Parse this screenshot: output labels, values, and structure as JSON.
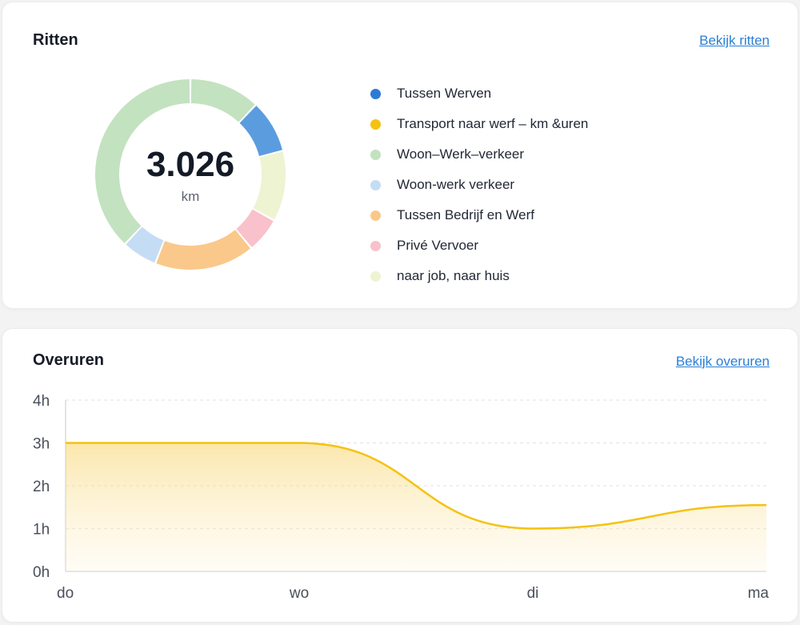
{
  "ritten": {
    "title": "Ritten",
    "link": "Bekijk ritten",
    "total_value": "3.026",
    "total_unit": "km",
    "legend": [
      {
        "label": "Tussen Werven",
        "color": "#2b7bd6"
      },
      {
        "label": "Transport naar werf – km &uren",
        "color": "#f5c211"
      },
      {
        "label": "Woon–Werk–verkeer",
        "color": "#c3e2c0"
      },
      {
        "label": "Woon-werk verkeer",
        "color": "#c5dcf5"
      },
      {
        "label": "Tussen Bedrijf en Werf",
        "color": "#fac88a"
      },
      {
        "label": "Privé Vervoer",
        "color": "#f8c1cb"
      },
      {
        "label": "naar job, naar huis",
        "color": "#eef3d2"
      }
    ]
  },
  "chart_data": [
    {
      "type": "pie",
      "categories": [
        "Woon–Werk–verkeer (top)",
        "Tussen Werven",
        "naar job, naar huis",
        "Privé Vervoer",
        "Tussen Bedrijf en Werf",
        "Woon-werk verkeer",
        "Woon–Werk–verkeer"
      ],
      "values": [
        0.12,
        0.09,
        0.12,
        0.06,
        0.17,
        0.06,
        0.38
      ],
      "colors": [
        "#c3e2c0",
        "#5b9cdf",
        "#eef3d2",
        "#f8c1cb",
        "#fac88a",
        "#c5dcf5",
        "#c3e2c0"
      ],
      "center_label": "3.026",
      "unit": "km"
    },
    {
      "type": "area",
      "x": [
        "do",
        "wo",
        "di",
        "ma"
      ],
      "y": [
        3,
        3,
        1,
        1.55
      ],
      "ylim": [
        0,
        4
      ],
      "yticks": [
        "0h",
        "1h",
        "2h",
        "3h",
        "4h"
      ],
      "color": "#f5c211",
      "grid": true
    }
  ],
  "overuren": {
    "title": "Overuren",
    "link": "Bekijk overuren"
  }
}
